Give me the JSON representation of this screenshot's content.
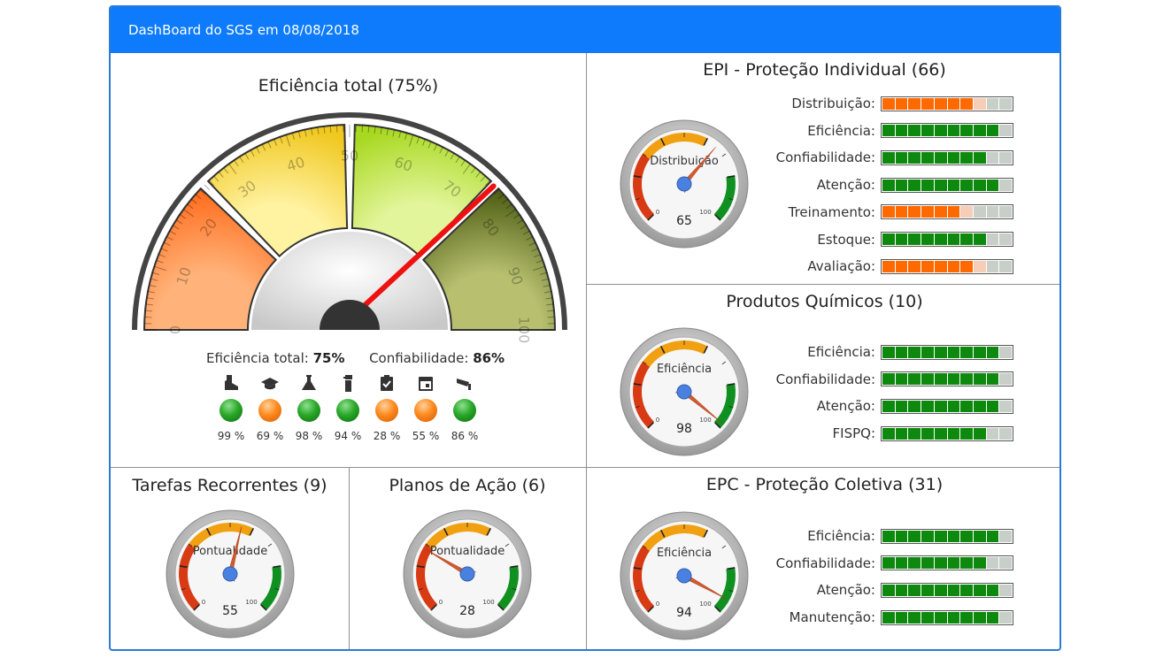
{
  "header": {
    "title": "DashBoard do SGS em 08/08/2018"
  },
  "colors": {
    "header_bg": "#0d7bfb",
    "green": "#0d8a0d",
    "orange": "#ff6a00",
    "light_orange": "#f6cdb6",
    "empty": "#c8cfc8"
  },
  "main": {
    "title": "Eficiência total (75%)",
    "gauge": {
      "value": 75,
      "ticks": [
        "10",
        "20",
        "30",
        "40",
        "50",
        "60",
        "70",
        "80",
        "90",
        "100"
      ],
      "zero": "0"
    },
    "summary": {
      "eff_label": "Eficiência total:",
      "eff_value": "75%",
      "conf_label": "Confiabilidade:",
      "conf_value": "86%"
    },
    "indicators": [
      {
        "icon": "boot-icon",
        "status": "green",
        "pct": "99 %"
      },
      {
        "icon": "graduation-cap-icon",
        "status": "orange",
        "pct": "69 %"
      },
      {
        "icon": "flask-icon",
        "status": "green",
        "pct": "98 %"
      },
      {
        "icon": "fire-extinguisher-icon",
        "status": "green",
        "pct": "94 %"
      },
      {
        "icon": "clipboard-check-icon",
        "status": "orange",
        "pct": "28 %"
      },
      {
        "icon": "calendar-icon",
        "status": "orange",
        "pct": "55 %"
      },
      {
        "icon": "cctv-camera-icon",
        "status": "green",
        "pct": "86 %"
      }
    ]
  },
  "epi": {
    "title": "EPI - Proteção Individual (66)",
    "gauge": {
      "label": "Distribuição",
      "value": 65,
      "min": "0",
      "max": "100"
    },
    "bars": [
      {
        "label": "Distribuição:",
        "value": 0.65,
        "color": "orange"
      },
      {
        "label": "Eficiência:",
        "value": 0.9,
        "color": "green"
      },
      {
        "label": "Confiabilidade:",
        "value": 0.8,
        "color": "green"
      },
      {
        "label": "Atenção:",
        "value": 0.9,
        "color": "green"
      },
      {
        "label": "Treinamento:",
        "value": 0.6,
        "color": "orange"
      },
      {
        "label": "Estoque:",
        "value": 0.8,
        "color": "green"
      },
      {
        "label": "Avaliação:",
        "value": 0.7,
        "color": "orange"
      }
    ]
  },
  "quimicos": {
    "title": "Produtos Químicos (10)",
    "gauge": {
      "label": "Eficiência",
      "value": 98,
      "min": "0",
      "max": "100"
    },
    "bars": [
      {
        "label": "Eficiência:",
        "value": 0.9,
        "color": "green"
      },
      {
        "label": "Confiabilidade:",
        "value": 0.9,
        "color": "green"
      },
      {
        "label": "Atenção:",
        "value": 0.9,
        "color": "green"
      },
      {
        "label": "FISPQ:",
        "value": 0.8,
        "color": "green"
      }
    ]
  },
  "epc": {
    "title": "EPC - Proteção Coletiva (31)",
    "gauge": {
      "label": "Eficiência",
      "value": 94,
      "min": "0",
      "max": "100"
    },
    "bars": [
      {
        "label": "Eficiência:",
        "value": 0.9,
        "color": "green"
      },
      {
        "label": "Confiabilidade:",
        "value": 0.8,
        "color": "green"
      },
      {
        "label": "Atenção:",
        "value": 0.9,
        "color": "green"
      },
      {
        "label": "Manutenção:",
        "value": 0.9,
        "color": "green"
      }
    ]
  },
  "tarefas": {
    "title": "Tarefas Recorrentes (9)",
    "gauge": {
      "label": "Pontualidade",
      "value": 55,
      "min": "0",
      "max": "100"
    }
  },
  "planos": {
    "title": "Planos de Ação (6)",
    "gauge": {
      "label": "Pontualidade",
      "value": 28,
      "min": "0",
      "max": "100"
    }
  }
}
